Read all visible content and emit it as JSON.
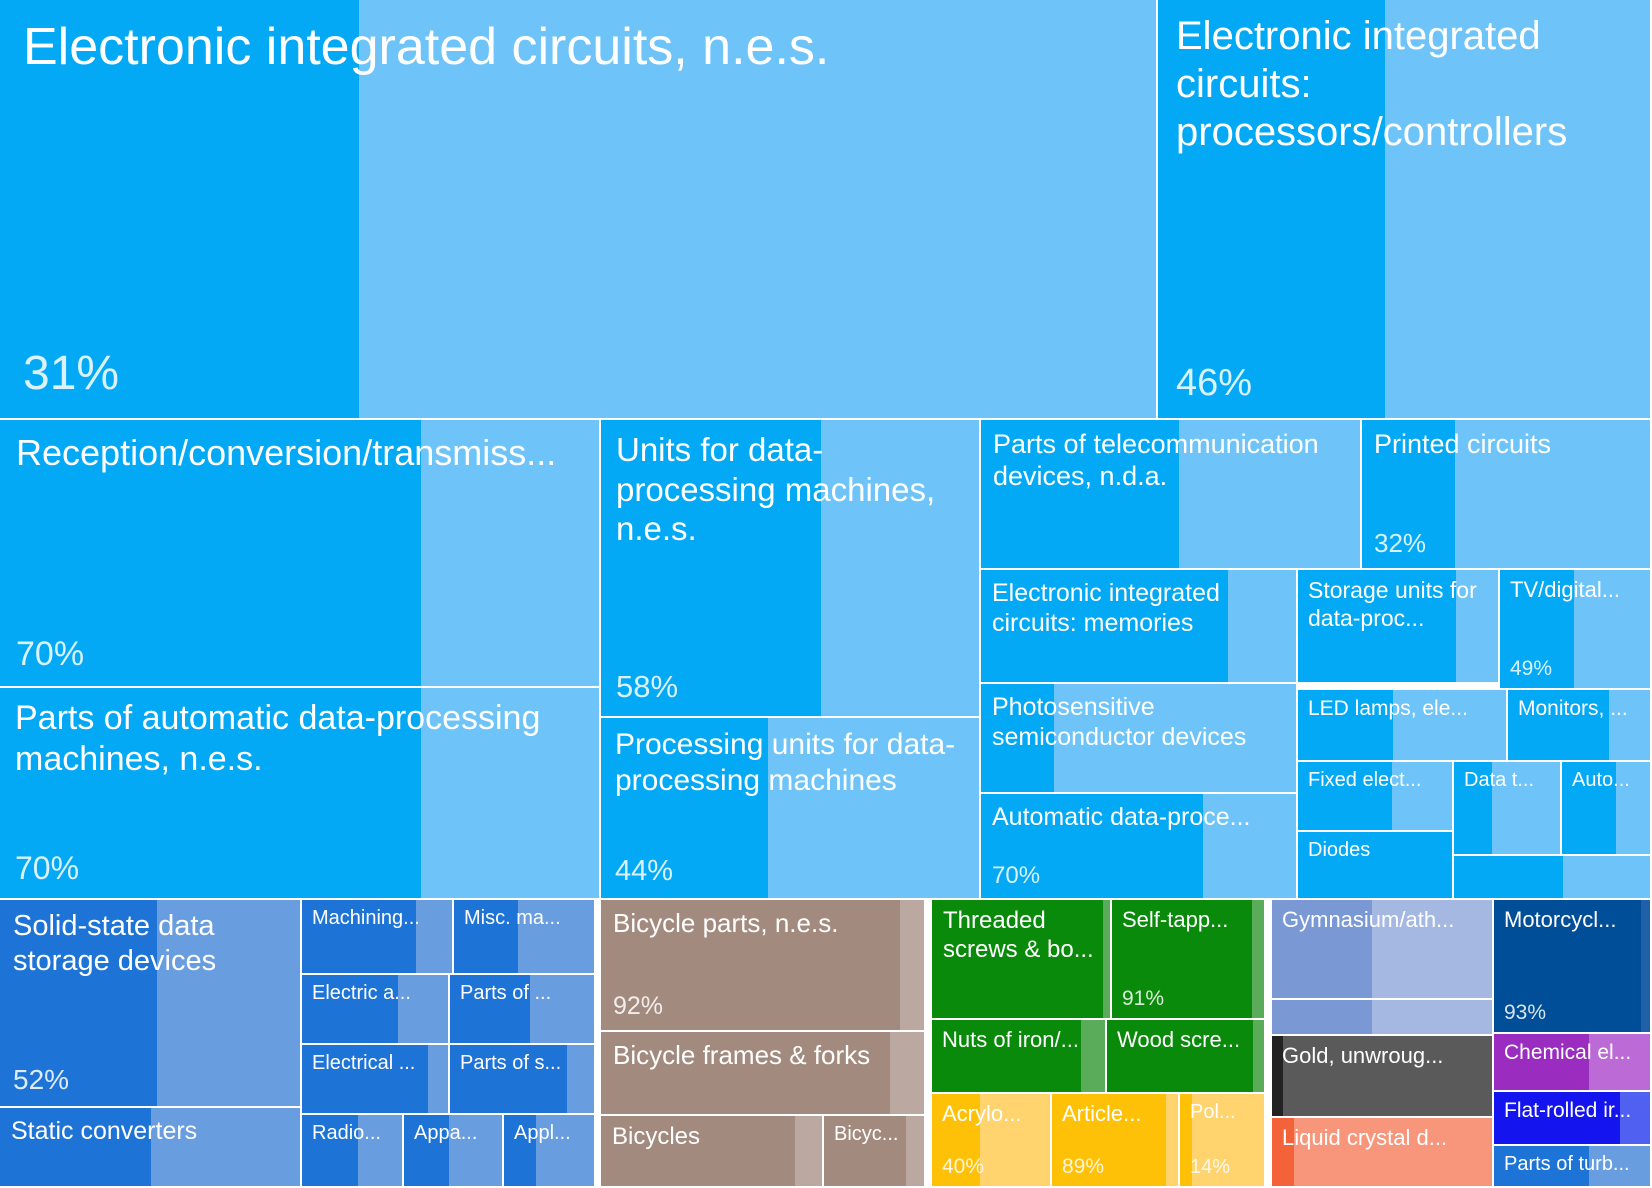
{
  "chart_data": {
    "type": "treemap",
    "title": "",
    "items": [
      {
        "label": "Electronic integrated circuits, n.e.s.",
        "share": 31,
        "group": "electronics"
      },
      {
        "label": "Electronic integrated circuits: processors/controllers",
        "share": 46,
        "group": "electronics"
      },
      {
        "label": "Reception/conversion/transmiss...",
        "share": 70,
        "group": "electronics"
      },
      {
        "label": "Parts of automatic data-processing machines, n.e.s.",
        "share": 70,
        "group": "electronics"
      },
      {
        "label": "Units for data-processing machines, n.e.s.",
        "share": 58,
        "group": "electronics"
      },
      {
        "label": "Processing units for data-processing machines",
        "share": 44,
        "group": "electronics"
      },
      {
        "label": "Parts of telecommunication devices, n.d.a.",
        "share": 52,
        "group": "electronics"
      },
      {
        "label": "Printed circuits",
        "share": 32,
        "group": "electronics"
      },
      {
        "label": "Electronic integrated circuits: memories",
        "share": 78,
        "group": "electronics"
      },
      {
        "label": "Storage units for data-proc...",
        "share": 78,
        "group": "electronics"
      },
      {
        "label": "TV/digital...",
        "share": 49,
        "group": "electronics"
      },
      {
        "label": "Photosensitive semiconductor devices",
        "share": 23,
        "group": "electronics"
      },
      {
        "label": "LED lamps, ele...",
        "share": 45,
        "group": "electronics"
      },
      {
        "label": "Monitors, ...",
        "share": 70,
        "group": "electronics"
      },
      {
        "label": "Automatic data-proce...",
        "share": 70,
        "group": "electronics"
      },
      {
        "label": "Fixed elect...",
        "share": 60,
        "group": "electronics"
      },
      {
        "label": "Data t...",
        "share": 35,
        "group": "electronics"
      },
      {
        "label": "Auto...",
        "share": 60,
        "group": "electronics"
      },
      {
        "label": "Diodes",
        "share": 100,
        "group": "electronics"
      },
      {
        "label": "",
        "share": 55,
        "group": "electronics"
      },
      {
        "label": "Solid-state data storage devices",
        "share": 52,
        "group": "machinery"
      },
      {
        "label": "Static converters",
        "share": 50,
        "group": "machinery"
      },
      {
        "label": "Machining...",
        "share": 75,
        "group": "machinery"
      },
      {
        "label": "Misc. ma...",
        "share": 45,
        "group": "machinery"
      },
      {
        "label": "Electric a...",
        "share": 65,
        "group": "machinery"
      },
      {
        "label": "Parts of ...",
        "share": 55,
        "group": "machinery"
      },
      {
        "label": "Electrical ...",
        "share": 85,
        "group": "machinery"
      },
      {
        "label": "Parts of s...",
        "share": 80,
        "group": "machinery"
      },
      {
        "label": "Radio...",
        "share": 55,
        "group": "machinery"
      },
      {
        "label": "Appa...",
        "share": 45,
        "group": "machinery"
      },
      {
        "label": "Appl...",
        "share": 35,
        "group": "machinery"
      },
      {
        "label": "Bicycle parts, n.e.s.",
        "share": 92,
        "group": "transport"
      },
      {
        "label": "Bicycle frames & forks",
        "share": 89,
        "group": "transport"
      },
      {
        "label": "Bicycles",
        "share": 87,
        "group": "transport"
      },
      {
        "label": "Bicyc...",
        "share": 80,
        "group": "transport"
      },
      {
        "label": "Threaded screws & bo...",
        "share": 95,
        "group": "metals"
      },
      {
        "label": "Self-tapp...",
        "share": 91,
        "group": "metals"
      },
      {
        "label": "Nuts of iron/...",
        "share": 85,
        "group": "metals"
      },
      {
        "label": "Wood scre...",
        "share": 92,
        "group": "metals"
      },
      {
        "label": "Acrylo...",
        "share": 40,
        "group": "plastics"
      },
      {
        "label": "Article...",
        "share": 89,
        "group": "plastics"
      },
      {
        "label": "Pol...",
        "share": 14,
        "group": "plastics"
      },
      {
        "label": "Gymnasium/ath...",
        "share": 45,
        "group": "misc"
      },
      {
        "label": "",
        "share": 45,
        "group": "misc"
      },
      {
        "label": "Gold, unwroug...",
        "share": 5,
        "group": "stone"
      },
      {
        "label": "Liquid crystal d...",
        "share": 10,
        "group": "instruments"
      },
      {
        "label": "Motorcycl...",
        "share": 93,
        "group": "vehicles"
      },
      {
        "label": "Chemical el...",
        "share": 60,
        "group": "chemicals"
      },
      {
        "label": "Flat-rolled ir...",
        "share": 80,
        "group": "steel"
      },
      {
        "label": "Parts of turb...",
        "share": 60,
        "group": "machinery"
      }
    ],
    "legend": "none",
    "pct_labels": [
      "31%",
      "46%",
      "70%",
      "70%",
      "58%",
      "44%",
      "32%",
      "49%",
      "70%",
      "52%",
      "92%",
      "91%",
      "40%",
      "89%",
      "14%",
      "93%"
    ],
    "colors": {
      "electronics_dark": "#03a9f4",
      "electronics_light": "#6ec4f8",
      "machinery_dark": "#1e74d6",
      "machinery_light": "#689de0",
      "transport_dark": "#a38a7e",
      "transport_light": "#bba9a1",
      "metals_dark": "#0a8a0a",
      "metals_light": "#5aab5a",
      "plastics_dark": "#ffc107",
      "plastics_light": "#ffd36e",
      "misc_dark": "#7a99d4",
      "misc_light": "#a4b8e2",
      "stone_dark": "#222222",
      "stone_light": "#5a5a5a",
      "instruments_dark": "#f4623a",
      "instruments_light": "#f7967a",
      "vehicles_dark": "#004e98",
      "vehicles_light": "#2060a8",
      "chemicals_dark": "#9a2cc0",
      "chemicals_light": "#bb6ad6",
      "steel_dark": "#1414ee",
      "steel_light": "#5060f0",
      "white": "#ffffff"
    }
  }
}
